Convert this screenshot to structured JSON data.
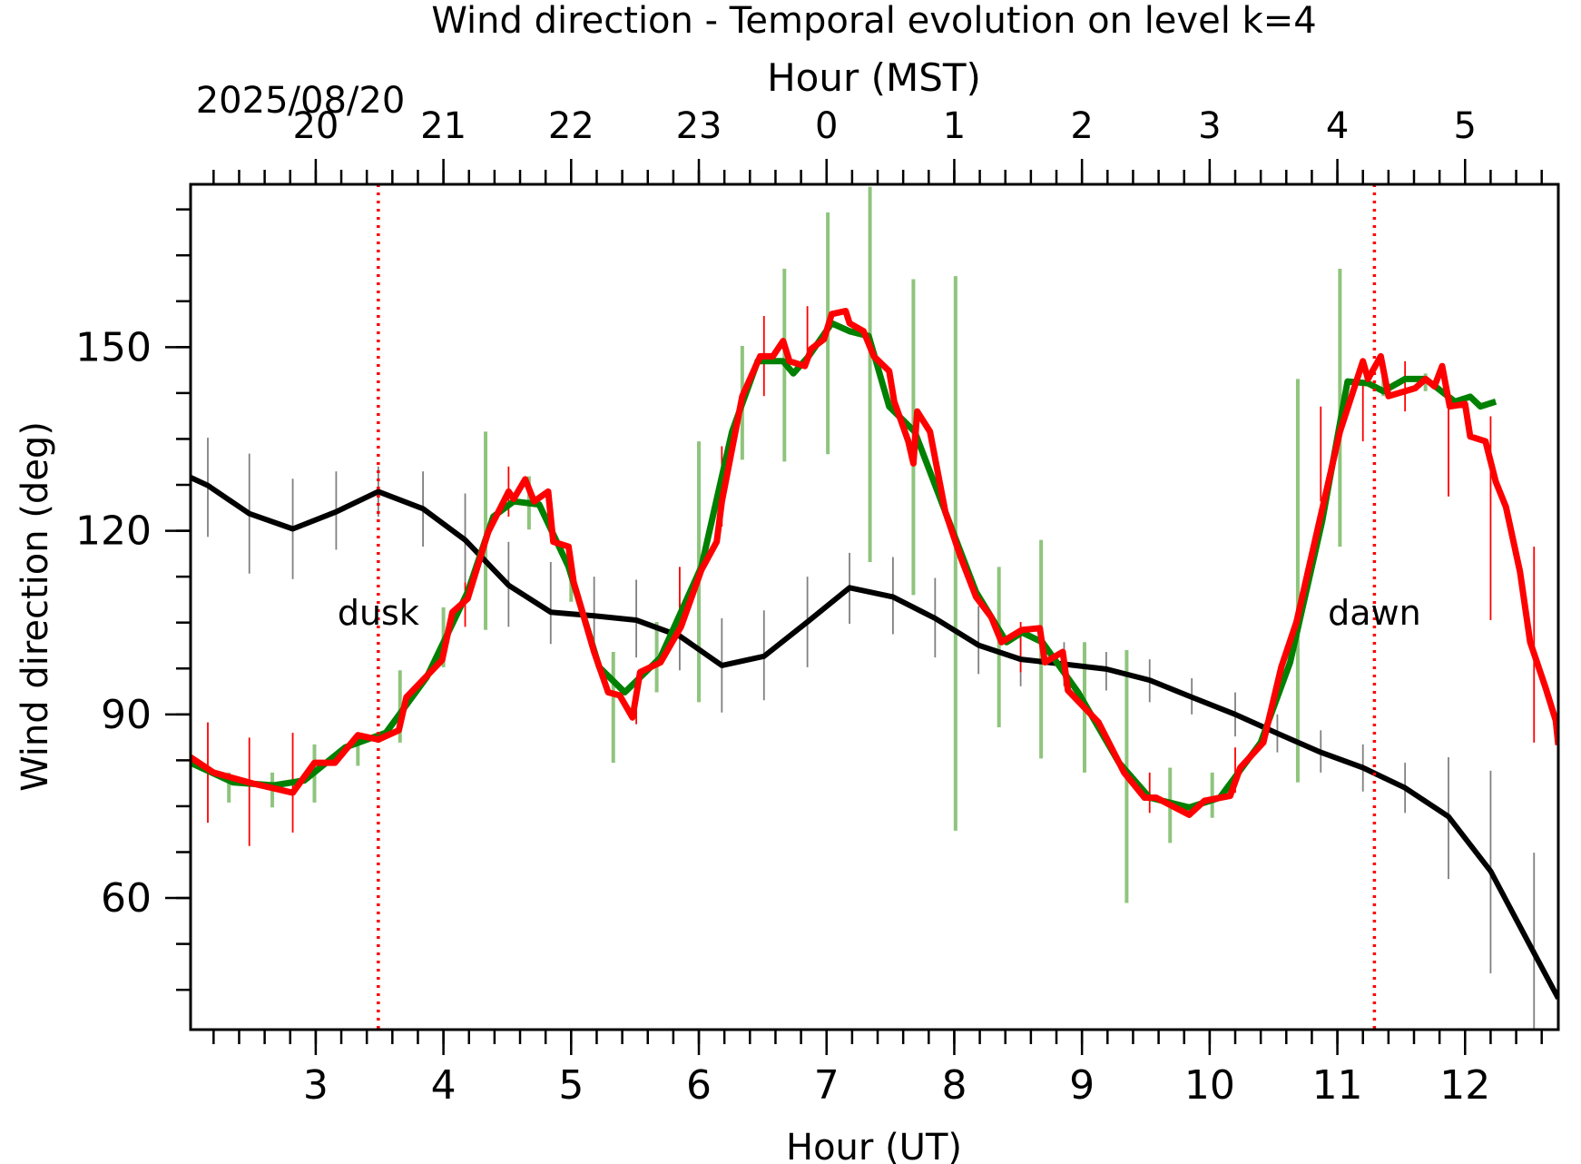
{
  "chart_data": {
    "type": "line",
    "title": "Wind direction - Temporal evolution on level k=4",
    "x2_label": "Hour (MST)",
    "x2_date": "2025/08/20",
    "xlabel": "Hour (UT)",
    "ylabel": "Wind direction (deg)",
    "xlim": [
      2.02,
      12.73
    ],
    "ylim": [
      38.5,
      176.6
    ],
    "xticks": [
      3,
      4,
      5,
      6,
      7,
      8,
      9,
      10,
      11,
      12
    ],
    "yticks": [
      60,
      90,
      120,
      150
    ],
    "x2ticks": [
      {
        "value": 3,
        "label": "20"
      },
      {
        "value": 4,
        "label": "21"
      },
      {
        "value": 5,
        "label": "22"
      },
      {
        "value": 6,
        "label": "23"
      },
      {
        "value": 7,
        "label": "0"
      },
      {
        "value": 8,
        "label": "1"
      },
      {
        "value": 9,
        "label": "2"
      },
      {
        "value": 10,
        "label": "3"
      },
      {
        "value": 11,
        "label": "4"
      },
      {
        "value": 12,
        "label": "5"
      }
    ],
    "xminor": 0.2,
    "yminor": 7.5,
    "vlines": [
      {
        "x": 3.49,
        "label": "dusk",
        "color": "#ff0000"
      },
      {
        "x": 11.29,
        "label": "dawn",
        "color": "#ff0000"
      }
    ],
    "series": [
      {
        "color": "#000000",
        "error_color": "#808080",
        "x": [
          2.02,
          2.155,
          2.48,
          2.82,
          3.16,
          3.49,
          3.84,
          4.17,
          4.51,
          4.84,
          5.18,
          5.51,
          5.85,
          6.18,
          6.51,
          6.85,
          7.18,
          7.52,
          7.85,
          8.19,
          8.52,
          8.86,
          9.19,
          9.53,
          9.86,
          10.2,
          10.53,
          10.87,
          11.2,
          11.53,
          11.87,
          12.2,
          12.54,
          12.73
        ],
        "values": [
          128.7,
          127.4,
          122.8,
          120.3,
          123.1,
          126.4,
          123.6,
          118.5,
          111.1,
          106.7,
          106.1,
          105.4,
          102.8,
          98.0,
          99.5,
          105.1,
          110.7,
          109.2,
          105.7,
          101.3,
          99.0,
          98.2,
          97.4,
          95.6,
          92.8,
          90.0,
          86.9,
          83.8,
          81.3,
          78.0,
          73.3,
          64.4,
          51.0,
          43.6
        ],
        "error_bars": {
          "x": [
            2.155,
            2.48,
            2.82,
            3.16,
            3.49,
            3.84,
            4.17,
            4.51,
            4.84,
            5.18,
            5.51,
            5.85,
            6.18,
            6.51,
            6.85,
            7.18,
            7.52,
            7.85,
            8.19,
            8.52,
            8.86,
            9.19,
            9.53,
            9.86,
            10.2,
            10.53,
            10.87,
            11.2,
            11.53,
            11.87,
            12.2,
            12.54
          ],
          "low": [
            119.0,
            113.0,
            112.1,
            116.9,
            122.3,
            117.4,
            111.6,
            104.3,
            101.5,
            99.3,
            99.3,
            97.2,
            90.3,
            92.3,
            97.7,
            104.8,
            103.1,
            99.3,
            96.6,
            94.6,
            94.6,
            93.9,
            92.0,
            90.0,
            86.4,
            83.8,
            80.5,
            77.4,
            73.9,
            63.1,
            47.7,
            38.5
          ],
          "high": [
            135.2,
            132.6,
            128.5,
            129.7,
            130.5,
            129.7,
            126.1,
            118.2,
            114.9,
            112.5,
            112.0,
            108.4,
            105.7,
            107.0,
            112.5,
            116.4,
            115.7,
            112.3,
            107.7,
            103.4,
            101.8,
            100.2,
            99.0,
            95.9,
            93.6,
            90.0,
            87.4,
            85.1,
            82.1,
            83.0,
            80.8,
            67.4
          ]
        }
      },
      {
        "color": "#008000",
        "error_color": "#8fc47d",
        "x": [
          2.02,
          2.35,
          2.67,
          2.91,
          3.23,
          3.55,
          3.87,
          4.19,
          4.39,
          4.55,
          4.75,
          4.98,
          5.22,
          5.42,
          5.7,
          6.02,
          6.26,
          6.46,
          6.66,
          6.74,
          6.86,
          7.04,
          7.18,
          7.33,
          7.49,
          7.69,
          7.93,
          8.17,
          8.41,
          8.53,
          8.69,
          8.97,
          9.29,
          9.53,
          9.84,
          10.08,
          10.4,
          10.63,
          10.88,
          11.08,
          11.24,
          11.36,
          11.53,
          11.69,
          11.92,
          12.04,
          12.12,
          12.24
        ],
        "values": [
          82.1,
          78.9,
          78.4,
          79.2,
          84.6,
          87.0,
          96.1,
          110.0,
          122.3,
          124.8,
          124.3,
          114.1,
          97.7,
          93.6,
          99.3,
          114.1,
          136.2,
          147.7,
          147.7,
          145.7,
          148.5,
          153.9,
          152.6,
          151.8,
          140.3,
          136.2,
          123.1,
          110.0,
          101.8,
          103.4,
          101.8,
          93.6,
          82.1,
          76.4,
          74.8,
          76.4,
          85.4,
          98.5,
          121.5,
          144.4,
          144.1,
          142.8,
          144.8,
          144.8,
          141.1,
          141.9,
          140.3,
          141.1
        ],
        "error_bars": {
          "x": [
            2.32,
            2.66,
            2.99,
            3.33,
            3.66,
            4.0,
            4.33,
            4.67,
            5.0,
            5.33,
            5.67,
            6.0,
            6.34,
            6.67,
            7.01,
            7.34,
            7.68,
            8.01,
            8.35,
            8.68,
            9.02,
            9.35,
            9.69,
            10.02,
            10.69,
            11.02,
            11.36,
            11.69
          ],
          "low": [
            75.6,
            74.8,
            75.6,
            81.6,
            85.4,
            97.7,
            103.8,
            120.2,
            108.4,
            82.1,
            93.6,
            92.0,
            131.6,
            131.3,
            132.5,
            114.9,
            109.5,
            71.0,
            87.9,
            82.8,
            80.5,
            59.2,
            69.0,
            73.1,
            78.9,
            117.4,
            142.0,
            142.8
          ],
          "high": [
            80.5,
            80.5,
            85.1,
            87.0,
            97.2,
            107.5,
            136.2,
            128.9,
            115.7,
            100.2,
            105.1,
            134.6,
            150.2,
            162.8,
            172.0,
            176.2,
            161.1,
            161.6,
            114.1,
            118.5,
            101.8,
            100.5,
            81.3,
            80.5,
            144.8,
            162.8,
            146.4,
            145.7
          ]
        }
      },
      {
        "color": "#ff0000",
        "error_color": "#ff0000",
        "x": [
          2.02,
          2.2,
          2.51,
          2.82,
          2.99,
          3.15,
          3.33,
          3.49,
          3.65,
          3.71,
          3.99,
          4.07,
          4.19,
          4.35,
          4.51,
          4.55,
          4.64,
          4.71,
          4.82,
          4.86,
          4.98,
          5.02,
          5.18,
          5.29,
          5.38,
          5.48,
          5.54,
          5.7,
          5.86,
          6.02,
          6.14,
          6.18,
          6.34,
          6.48,
          6.58,
          6.66,
          6.71,
          6.83,
          6.88,
          6.98,
          7.04,
          7.15,
          7.18,
          7.29,
          7.37,
          7.49,
          7.53,
          7.64,
          7.68,
          7.71,
          7.81,
          7.93,
          8.05,
          8.17,
          8.29,
          8.37,
          8.53,
          8.67,
          8.71,
          8.85,
          8.89,
          9.13,
          9.33,
          9.49,
          9.58,
          9.84,
          9.96,
          10.16,
          10.24,
          10.42,
          10.56,
          10.68,
          10.84,
          11.02,
          11.2,
          11.24,
          11.34,
          11.4,
          11.61,
          11.69,
          11.76,
          11.82,
          11.88,
          12.0,
          12.04,
          12.16,
          12.24,
          12.32,
          12.43,
          12.51,
          12.63,
          12.71,
          12.73
        ],
        "values": [
          83.0,
          80.5,
          78.7,
          77.2,
          82.1,
          82.1,
          86.6,
          85.9,
          87.4,
          92.8,
          98.9,
          106.7,
          108.9,
          119.8,
          126.4,
          125.2,
          128.4,
          124.8,
          126.4,
          118.2,
          117.4,
          111.6,
          100.2,
          93.6,
          93.1,
          89.5,
          96.9,
          98.5,
          104.3,
          113.6,
          118.2,
          124.8,
          142.0,
          148.5,
          148.5,
          151.0,
          147.7,
          146.9,
          149.7,
          151.3,
          155.4,
          155.9,
          153.9,
          152.6,
          148.5,
          146.1,
          141.1,
          134.6,
          131.0,
          139.5,
          136.2,
          123.1,
          115.7,
          109.2,
          105.9,
          101.8,
          103.8,
          104.1,
          98.5,
          100.2,
          93.9,
          88.7,
          80.5,
          76.4,
          76.4,
          73.6,
          75.9,
          76.7,
          81.3,
          85.4,
          97.7,
          105.1,
          119.8,
          136.2,
          147.7,
          144.8,
          148.5,
          142.0,
          143.3,
          144.8,
          143.6,
          146.9,
          140.3,
          140.7,
          135.4,
          134.6,
          128.0,
          123.9,
          113.3,
          101.8,
          94.4,
          89.0,
          85.0
        ],
        "error_bars": {
          "x": [
            2.155,
            2.48,
            2.82,
            4.17,
            4.51,
            5.51,
            5.85,
            6.18,
            6.51,
            6.85,
            8.52,
            9.53,
            10.2,
            10.87,
            11.2,
            11.53,
            11.87,
            12.2,
            12.54
          ],
          "low": [
            72.3,
            68.5,
            70.7,
            104.3,
            122.3,
            88.4,
            105.1,
            120.7,
            142.0,
            149.3,
            96.9,
            73.9,
            77.2,
            124.8,
            134.6,
            139.5,
            125.6,
            105.4,
            85.4
          ],
          "high": [
            88.7,
            86.2,
            87.0,
            111.6,
            130.5,
            92.5,
            114.1,
            133.8,
            155.1,
            156.7,
            105.1,
            80.5,
            84.6,
            140.3,
            144.4,
            147.7,
            141.1,
            138.7,
            117.4
          ]
        }
      }
    ]
  }
}
